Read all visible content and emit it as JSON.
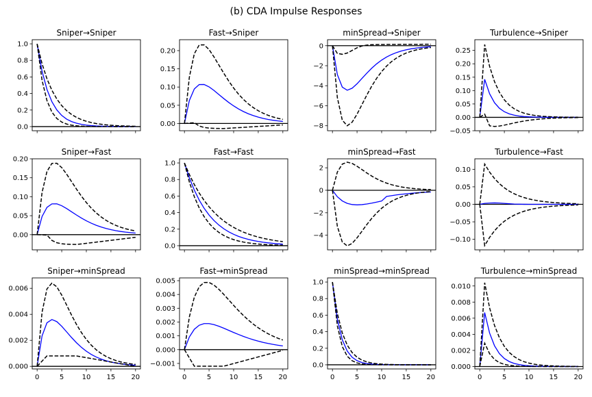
{
  "figure": {
    "title": "(b) CDA Impulse Responses",
    "colors": {
      "irf": "#0000ff",
      "band": "#000000",
      "zero": "#000000"
    }
  },
  "chart_data": [
    {
      "type": "line",
      "title": "Sniper→Sniper",
      "xlim": [
        -1,
        21
      ],
      "ylim": [
        -0.05,
        1.05
      ],
      "xticks": [
        0,
        5,
        10,
        15,
        20
      ],
      "yticks": [
        0.0,
        0.2,
        0.4,
        0.6,
        0.8,
        1.0
      ],
      "ytick_labels": [
        "0.0",
        "0.2",
        "0.4",
        "0.6",
        "0.8",
        "1.0"
      ],
      "xtick_labels": [],
      "shape": {
        "kind": "decay",
        "center": 0.67,
        "upper": 0.76,
        "lower": 0.56
      },
      "series": []
    },
    {
      "type": "line",
      "title": "Fast→Sniper",
      "xlim": [
        -1,
        21
      ],
      "ylim": [
        -0.02,
        0.23
      ],
      "xticks": [
        0,
        5,
        10,
        15,
        20
      ],
      "yticks": [
        0.0,
        0.05,
        0.1,
        0.15,
        0.2
      ],
      "ytick_labels": [
        "0.00",
        "0.05",
        "0.10",
        "0.15",
        "0.20"
      ],
      "xtick_labels": [],
      "shape": {
        "kind": "hump",
        "center": 0.108,
        "upper": 0.218,
        "lower": 0.002,
        "peak": 3.5,
        "lowEnd": -0.004,
        "lowMin": -0.014
      },
      "series": []
    },
    {
      "type": "line",
      "title": "minSpread→Sniper",
      "xlim": [
        -1,
        21
      ],
      "ylim": [
        -8.5,
        0.6
      ],
      "xticks": [
        0,
        5,
        10,
        15,
        20
      ],
      "yticks": [
        0,
        -2,
        -4,
        -6,
        -8
      ],
      "ytick_labels": [
        "0",
        "−2",
        "−4",
        "−6",
        "−8"
      ],
      "xtick_labels": [],
      "shape": {
        "kind": "dip",
        "center": -4.45,
        "upper": -0.9,
        "lower": -8.0,
        "peak": 3,
        "upEnd": 0.15
      },
      "series": []
    },
    {
      "type": "line",
      "title": "Turbulence→Sniper",
      "xlim": [
        -1,
        21
      ],
      "ylim": [
        -0.05,
        0.29
      ],
      "xticks": [
        0,
        5,
        10,
        15,
        20
      ],
      "yticks": [
        -0.05,
        0.0,
        0.05,
        0.1,
        0.15,
        0.2,
        0.25
      ],
      "ytick_labels": [
        "−0.05",
        "0.00",
        "0.05",
        "0.10",
        "0.15",
        "0.20",
        "0.25"
      ],
      "xtick_labels": [],
      "shape": {
        "kind": "spike",
        "center": 0.142,
        "upper": 0.272,
        "lower": 0.012,
        "lowMin": -0.034
      },
      "series": []
    },
    {
      "type": "line",
      "title": "Sniper→Fast",
      "xlim": [
        -1,
        21
      ],
      "ylim": [
        -0.04,
        0.2
      ],
      "xticks": [
        0,
        5,
        10,
        15,
        20
      ],
      "yticks": [
        0.0,
        0.05,
        0.1,
        0.15,
        0.2
      ],
      "ytick_labels": [
        "0.00",
        "0.05",
        "0.10",
        "0.15",
        "0.20"
      ],
      "xtick_labels": [],
      "shape": {
        "kind": "hump",
        "center": 0.082,
        "upper": 0.19,
        "lower": -0.001,
        "peak": 3.5,
        "lowEnd": -0.007,
        "lowMin": -0.026
      },
      "series": []
    },
    {
      "type": "line",
      "title": "Fast→Fast",
      "xlim": [
        -1,
        21
      ],
      "ylim": [
        -0.05,
        1.05
      ],
      "xticks": [
        0,
        5,
        10,
        15,
        20
      ],
      "yticks": [
        0.0,
        0.2,
        0.4,
        0.6,
        0.8,
        1.0
      ],
      "ytick_labels": [
        "0.0",
        "0.2",
        "0.4",
        "0.6",
        "0.8",
        "1.0"
      ],
      "xtick_labels": [],
      "shape": {
        "kind": "decay",
        "center": 0.82,
        "upper": 0.86,
        "lower": 0.77
      },
      "series": []
    },
    {
      "type": "line",
      "title": "minSpread→Fast",
      "xlim": [
        -1,
        21
      ],
      "ylim": [
        -5.3,
        2.8
      ],
      "xticks": [
        0,
        5,
        10,
        15,
        20
      ],
      "yticks": [
        2,
        0,
        -2,
        -4
      ],
      "ytick_labels": [
        "2",
        "0",
        "−2",
        "−4"
      ],
      "xtick_labels": [],
      "shape": {
        "kind": "band",
        "center": -1.3,
        "upper": 2.5,
        "lower": -4.95,
        "peak": 3,
        "cpeak": 5,
        "cEnd": -0.15,
        "upEnd": 0.15,
        "lowEnd": -0.45
      },
      "series": []
    },
    {
      "type": "line",
      "title": "Turbulence→Fast",
      "xlim": [
        -1,
        21
      ],
      "ylim": [
        -0.13,
        0.13
      ],
      "xticks": [
        0,
        5,
        10,
        15,
        20
      ],
      "yticks": [
        0.1,
        0.05,
        0.0,
        -0.05,
        -0.1
      ],
      "ytick_labels": [
        "0.10",
        "0.05",
        "0.00",
        "−0.05",
        "−0.10"
      ],
      "xtick_labels": [],
      "shape": {
        "kind": "sym",
        "center": 0.004,
        "upper": 0.115,
        "lower": -0.118
      },
      "series": []
    },
    {
      "type": "line",
      "title": "Sniper→minSpread",
      "xlim": [
        -1,
        21
      ],
      "ylim": [
        -0.0002,
        0.0068
      ],
      "xticks": [
        0,
        5,
        10,
        15,
        20
      ],
      "yticks": [
        0.0,
        0.002,
        0.004,
        0.006
      ],
      "ytick_labels": [
        "0.000",
        "0.002",
        "0.004",
        "0.006"
      ],
      "xtick_labels": [
        "0",
        "5",
        "10",
        "15",
        "20"
      ],
      "shape": {
        "kind": "hump",
        "center": 0.0036,
        "upper": 0.0064,
        "lower": 0.0008,
        "peak": 3,
        "lowEnd": 0.0,
        "lowMin": 0.0008
      },
      "series": []
    },
    {
      "type": "line",
      "title": "Fast→minSpread",
      "xlim": [
        -1,
        21
      ],
      "ylim": [
        -0.0014,
        0.0052
      ],
      "xticks": [
        0,
        5,
        10,
        15,
        20
      ],
      "yticks": [
        0.005,
        0.004,
        0.003,
        0.002,
        0.001,
        0.0,
        -0.001
      ],
      "ytick_labels": [
        "0.005",
        "0.004",
        "0.003",
        "0.002",
        "0.001",
        "0.000",
        "−0.001"
      ],
      "xtick_labels": [
        "0",
        "5",
        "10",
        "15",
        "20"
      ],
      "shape": {
        "kind": "hump",
        "center": 0.0019,
        "upper": 0.0049,
        "lower": -0.0012,
        "peak": 4.5,
        "lowEnd": -5e-05,
        "lowMin": -0.0012
      },
      "series": []
    },
    {
      "type": "line",
      "title": "minSpread→minSpread",
      "xlim": [
        -1,
        21
      ],
      "ylim": [
        -0.05,
        1.05
      ],
      "xticks": [
        0,
        5,
        10,
        15,
        20
      ],
      "yticks": [
        0.0,
        0.2,
        0.4,
        0.6,
        0.8,
        1.0
      ],
      "ytick_labels": [
        "0.0",
        "0.2",
        "0.4",
        "0.6",
        "0.8",
        "1.0"
      ],
      "xtick_labels": [
        "0",
        "5",
        "10",
        "15",
        "20"
      ],
      "shape": {
        "kind": "decay",
        "center": 0.55,
        "upper": 0.62,
        "lower": 0.47
      },
      "series": []
    },
    {
      "type": "line",
      "title": "Turbulence→minSpread",
      "xlim": [
        -1,
        21
      ],
      "ylim": [
        -0.0003,
        0.011
      ],
      "xticks": [
        0,
        5,
        10,
        15,
        20
      ],
      "yticks": [
        0.0,
        0.002,
        0.004,
        0.006,
        0.008,
        0.01
      ],
      "ytick_labels": [
        "0.000",
        "0.002",
        "0.004",
        "0.006",
        "0.008",
        "0.010"
      ],
      "xtick_labels": [
        "0",
        "5",
        "10",
        "15",
        "20"
      ],
      "shape": {
        "kind": "spike",
        "center": 0.0067,
        "upper": 0.0104,
        "lower": 0.0029,
        "lowMin": 0.0
      },
      "series": []
    }
  ]
}
